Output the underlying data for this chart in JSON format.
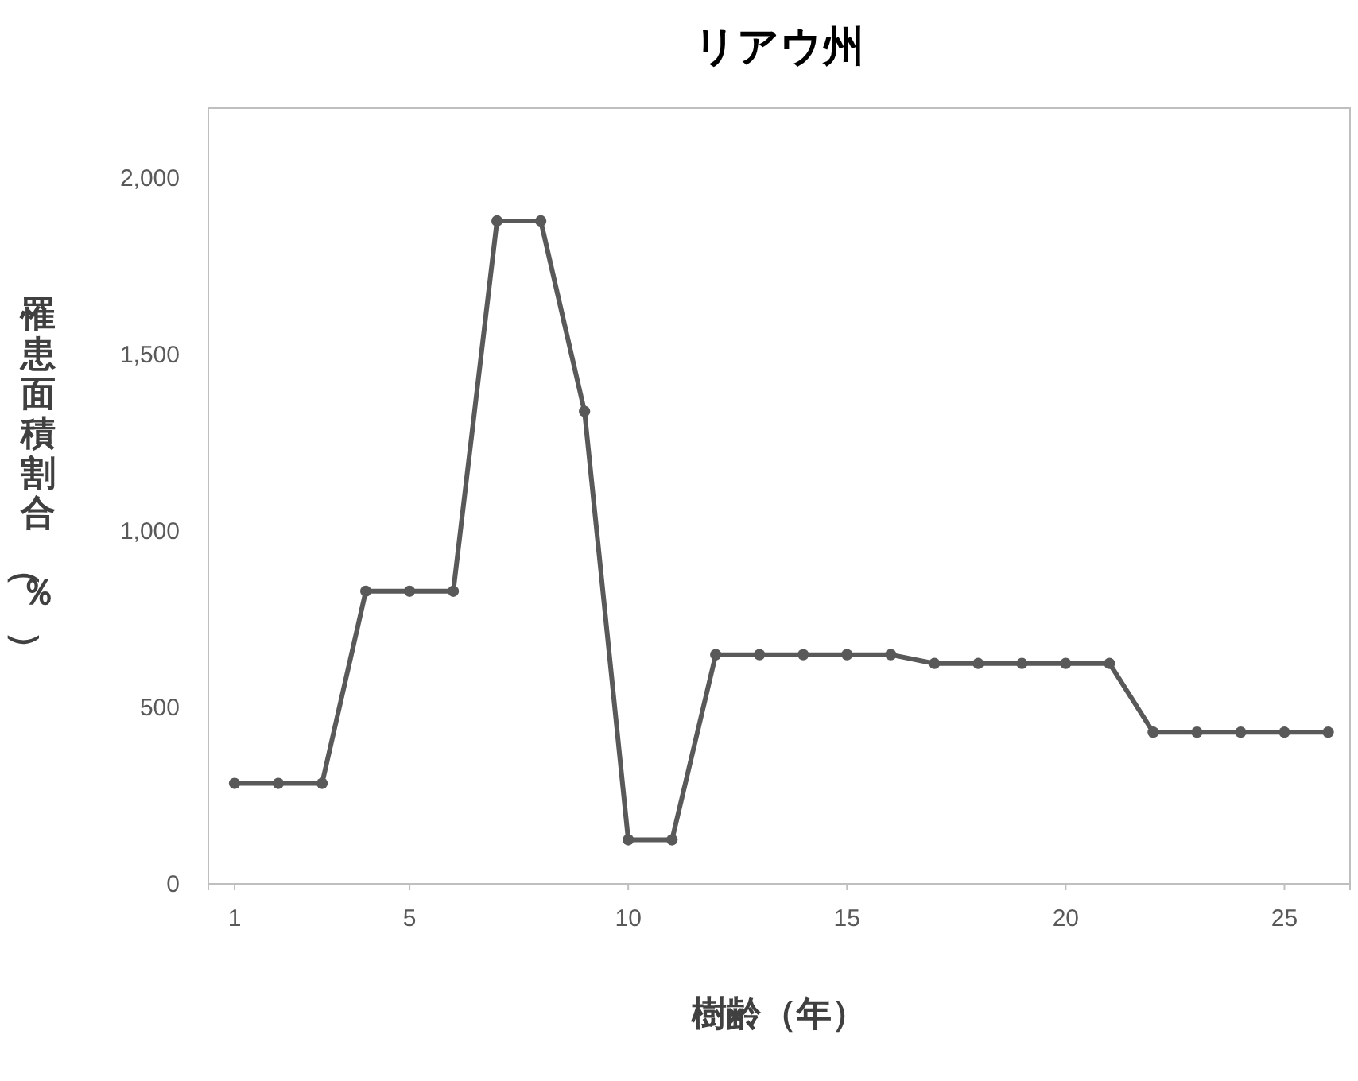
{
  "chart_data": {
    "type": "line",
    "title": "リアウ州",
    "xlabel": "樹齢（年）",
    "ylabel": "罹患面積割合（％）",
    "x": [
      1,
      2,
      3,
      4,
      5,
      6,
      7,
      8,
      9,
      10,
      11,
      12,
      13,
      14,
      15,
      16,
      17,
      18,
      19,
      20,
      21,
      22,
      23,
      24,
      25,
      26
    ],
    "series": [
      {
        "color": "#595959",
        "values": [
          285,
          285,
          285,
          830,
          830,
          830,
          1880,
          1880,
          1340,
          125,
          125,
          650,
          650,
          650,
          650,
          650,
          625,
          625,
          625,
          625,
          625,
          430,
          430,
          430,
          430,
          430
        ]
      }
    ],
    "xlim": [
      0.4,
      26.5
    ],
    "xticks": [
      1,
      5,
      10,
      15,
      20,
      25
    ],
    "ylim": [
      0,
      2200
    ],
    "yticks": [
      0,
      {
        "value": 500,
        "label": "500"
      },
      {
        "value": 1000,
        "label": "1,000"
      },
      {
        "value": 1500,
        "label": "1,500"
      },
      {
        "value": 2000,
        "label": "2,000"
      }
    ],
    "grid": false,
    "marker": "circle",
    "line_style": "solid"
  }
}
